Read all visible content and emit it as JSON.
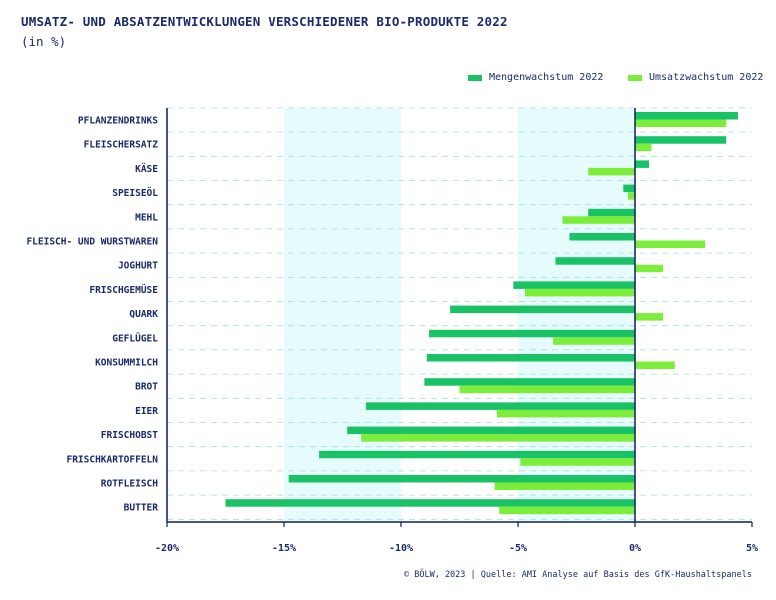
{
  "title": "UMSATZ- UND ABSATZENTWICKLUNGEN VERSCHIEDENER BIO-PRODUKTE 2022",
  "subtitle": "(in %)",
  "footer": "© BÖLW, 2023 | Quelle: AMI Analyse auf Basis des GfK-Haushaltspanels",
  "colors": {
    "mengen": "#19c265",
    "umsatz": "#7ded3c",
    "axis": "#0d1f5c",
    "band": "#e6fbfb",
    "grid": "#a8ddd9",
    "text": "#1a2a6c"
  },
  "chart_data": {
    "type": "bar",
    "orientation": "horizontal",
    "title": "UMSATZ- UND ABSATZENTWICKLUNGEN VERSCHIEDENER BIO-PRODUKTE 2022",
    "subtitle": "(in %)",
    "categories": [
      "PFLANZENDRINKS",
      "FLEISCHERSATZ",
      "KÄSE",
      "SPEISEÖL",
      "MEHL",
      "FLEISCH- UND WURSTWAREN",
      "JOGHURT",
      "FRISCHGEMÜSE",
      "QUARK",
      "GEFLÜGEL",
      "KONSUMMILCH",
      "BROT",
      "EIER",
      "FRISCHOBST",
      "FRISCHKARTOFFELN",
      "ROTFLEISCH",
      "BUTTER"
    ],
    "series": [
      {
        "name": "Mengenwachstum 2022",
        "values": [
          4.4,
          3.9,
          0.6,
          -0.5,
          -2.0,
          -2.8,
          -3.4,
          -5.2,
          -7.9,
          -8.8,
          -8.9,
          -9.0,
          -11.5,
          -12.3,
          -13.5,
          -14.8,
          -17.5
        ]
      },
      {
        "name": "Umsatzwachstum 2022",
        "values": [
          3.9,
          0.7,
          -2.0,
          -0.3,
          -3.1,
          3.0,
          1.2,
          -4.7,
          1.2,
          -3.5,
          1.7,
          -7.5,
          -5.9,
          -11.7,
          -4.9,
          -6.0,
          -5.8
        ]
      }
    ],
    "xlim": [
      -20,
      5
    ],
    "xticks": [
      "-20%",
      "-15%",
      "-10%",
      "-5%",
      "0%",
      "5%"
    ],
    "xtick_values": [
      -20,
      -15,
      -10,
      -5,
      0,
      5
    ],
    "legend": "top-right",
    "grid": "dashed horizontal"
  }
}
